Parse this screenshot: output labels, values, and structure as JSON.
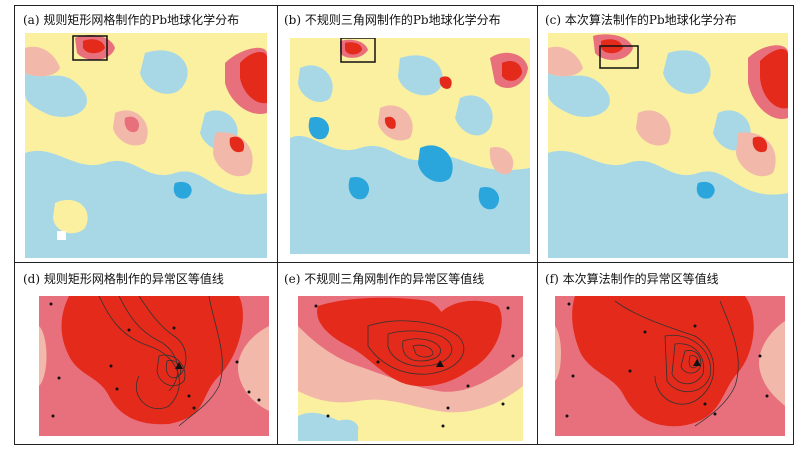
{
  "figure": {
    "panels": [
      {
        "caption": "(a) 规则矩形网格制作的Pb地球化学分布"
      },
      {
        "caption": "(b) 不规则三角网制作的Pb地球化学分布"
      },
      {
        "caption": "(c) 本次算法制作的Pb地球化学分布"
      },
      {
        "caption": "(d) 规则矩形网格制作的异常区等值线"
      },
      {
        "caption": "(e) 不规则三角网制作的异常区等值线"
      },
      {
        "caption": "(f) 本次算法制作的异常区等值线"
      }
    ]
  },
  "colors": {
    "light_blue": "#a8d8e6",
    "blue": "#2aa6dc",
    "yellow": "#faf0a0",
    "pink": "#f2b8aa",
    "rose": "#e8707c",
    "red": "#e42a1a",
    "contour": "#333333",
    "sample_point": "#111111"
  }
}
